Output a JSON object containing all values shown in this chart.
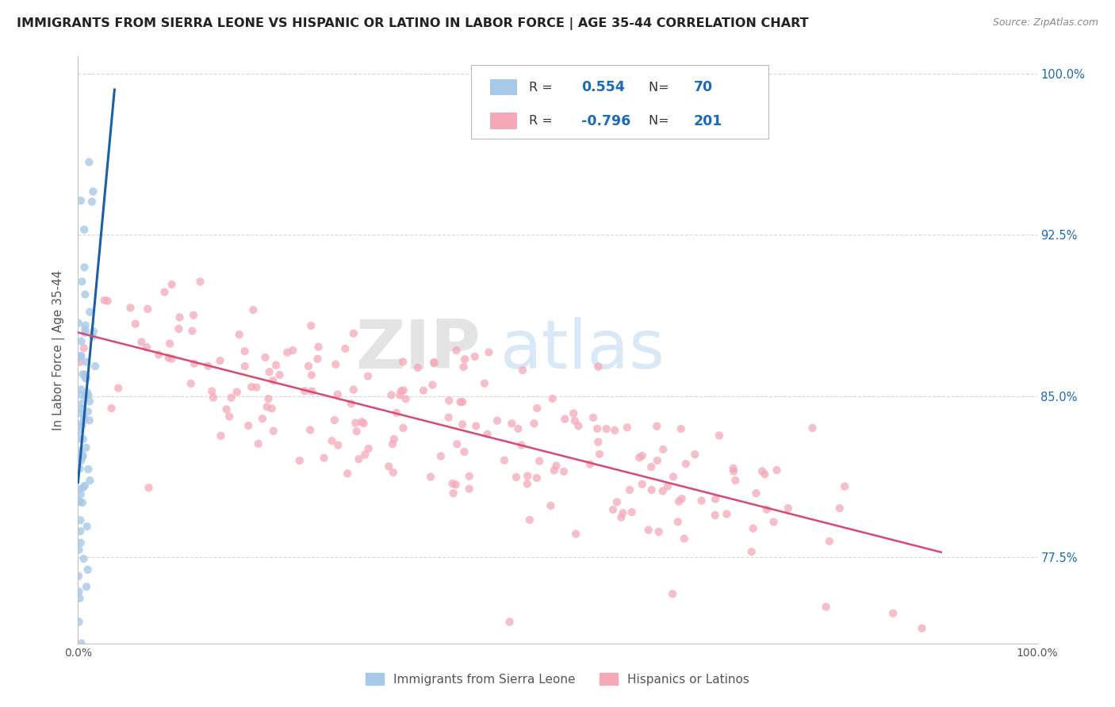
{
  "title": "IMMIGRANTS FROM SIERRA LEONE VS HISPANIC OR LATINO IN LABOR FORCE | AGE 35-44 CORRELATION CHART",
  "source": "Source: ZipAtlas.com",
  "ylabel": "In Labor Force | Age 35-44",
  "xlim": [
    0.0,
    1.0
  ],
  "ylim": [
    0.735,
    1.008
  ],
  "yticks": [
    0.775,
    0.85,
    0.925,
    1.0
  ],
  "ytick_labels": [
    "77.5%",
    "85.0%",
    "92.5%",
    "100.0%"
  ],
  "xticks": [
    0.0,
    0.25,
    0.5,
    0.75,
    1.0
  ],
  "xtick_labels": [
    "0.0%",
    "",
    "",
    "",
    "100.0%"
  ],
  "blue_R": 0.554,
  "blue_N": 70,
  "pink_R": -0.796,
  "pink_N": 201,
  "blue_color": "#a8c8e8",
  "blue_line_color": "#1a5fa8",
  "pink_color": "#f4a8b8",
  "pink_line_color": "#d84870",
  "legend_label_blue": "Immigrants from Sierra Leone",
  "legend_label_pink": "Hispanics or Latinos",
  "watermark_zip": "ZIP",
  "watermark_atlas": "atlas",
  "background_color": "#ffffff",
  "grid_color": "#d8d8d8",
  "title_color": "#222222",
  "source_color": "#888888"
}
